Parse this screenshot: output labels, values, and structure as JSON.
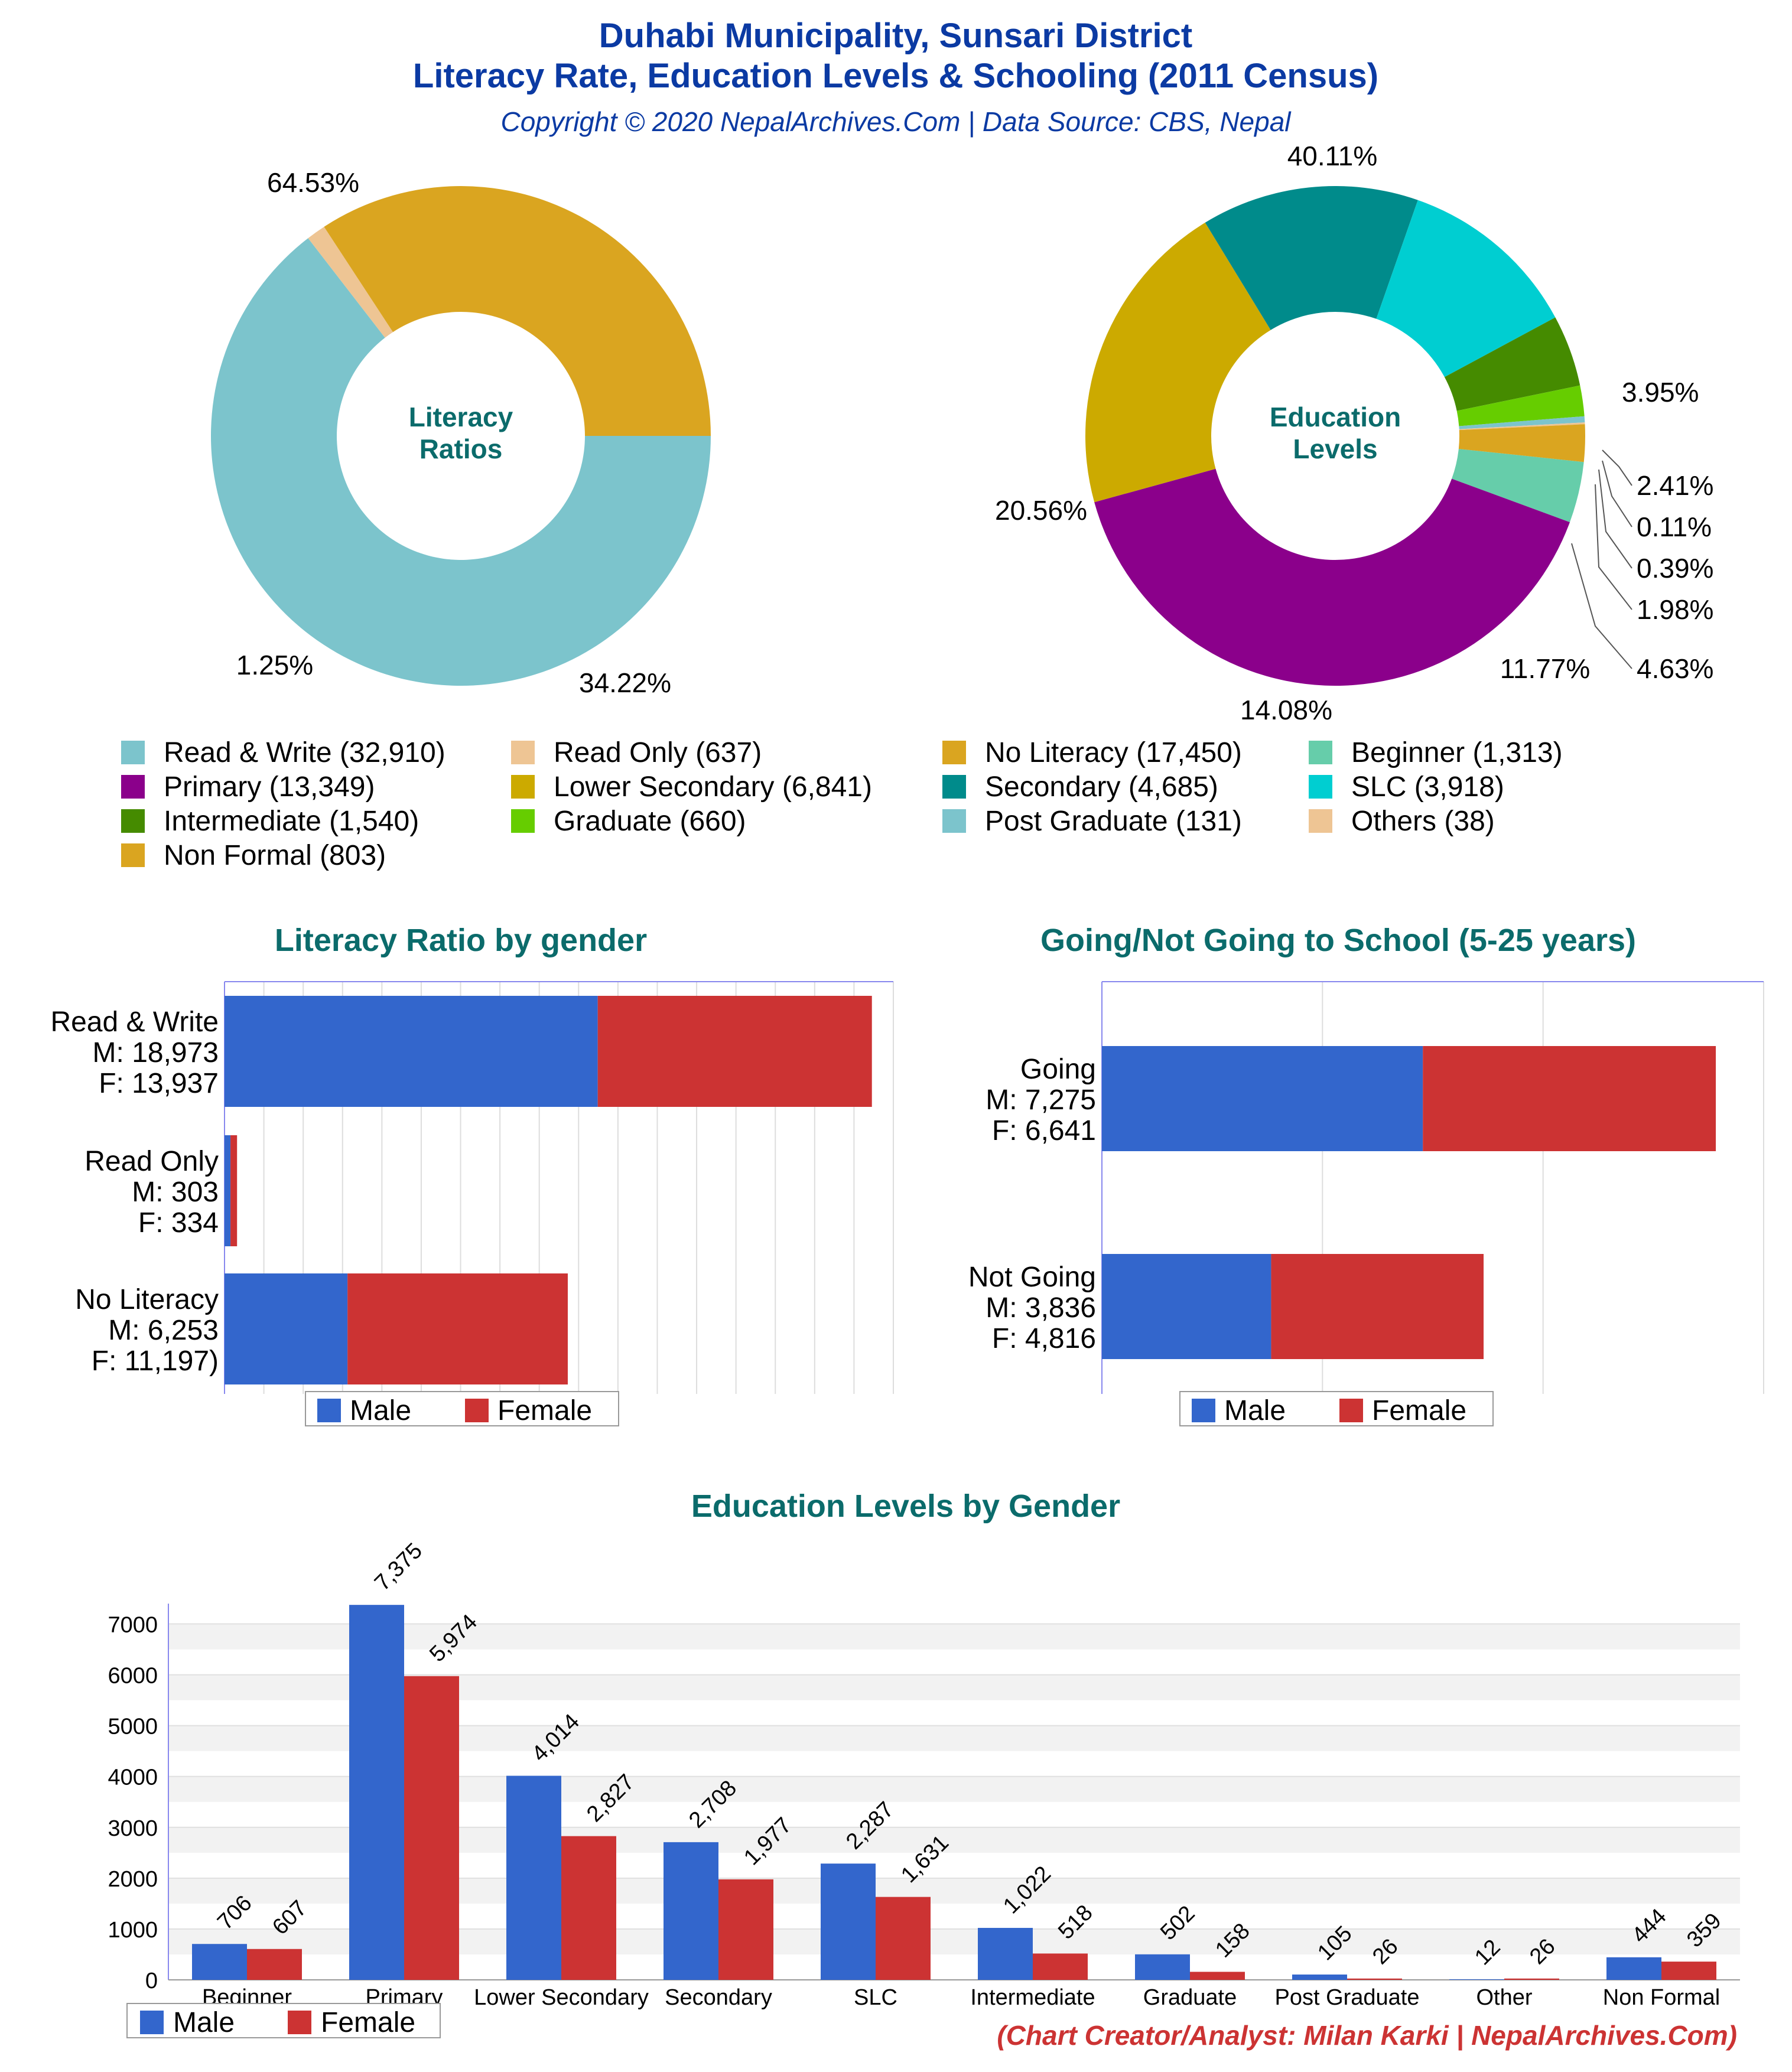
{
  "header": {
    "title_line1": "Duhabi Municipality, Sunsari District",
    "title_line2": "Literacy Rate, Education Levels & Schooling (2011 Census)",
    "subtitle": "Copyright © 2020 NepalArchives.Com | Data Source: CBS, Nepal"
  },
  "footer": {
    "credit": "(Chart Creator/Analyst: Milan Karki | NepalArchives.Com)"
  },
  "colors": {
    "title": "#0b3aa3",
    "section_title": "#0b6b6b",
    "male": "#3366cc",
    "female": "#cc3333",
    "credit": "#cc3333"
  },
  "chart_data": [
    {
      "id": "literacy_donut",
      "type": "pie",
      "center_label": [
        "Literacy",
        "Ratios"
      ],
      "slices": [
        {
          "label": "Read & Write (32,910)",
          "value": 32910,
          "percent_label": "64.53%",
          "color": "#7cc4cc"
        },
        {
          "label": "Read Only (637)",
          "value": 637,
          "percent_label": "1.25%",
          "color": "#eec594"
        },
        {
          "label": "No Literacy (17,450)",
          "value": 17450,
          "percent_label": "34.22%",
          "color": "#daa520"
        }
      ]
    },
    {
      "id": "education_donut",
      "type": "pie",
      "center_label": [
        "Education",
        "Levels"
      ],
      "slices": [
        {
          "label": "Beginner (1,313)",
          "value": 1313,
          "percent_label": "3.95%",
          "color": "#66cdaa"
        },
        {
          "label": "Primary (13,349)",
          "value": 13349,
          "percent_label": "40.11%",
          "color": "#8b008b"
        },
        {
          "label": "Lower Secondary (6,841)",
          "value": 6841,
          "percent_label": "20.56%",
          "color": "#ccaa00"
        },
        {
          "label": "Secondary (4,685)",
          "value": 4685,
          "percent_label": "14.08%",
          "color": "#008b8b"
        },
        {
          "label": "SLC (3,918)",
          "value": 3918,
          "percent_label": "11.77%",
          "color": "#00ced1"
        },
        {
          "label": "Intermediate (1,540)",
          "value": 1540,
          "percent_label": "4.63%",
          "color": "#458b00"
        },
        {
          "label": "Graduate (660)",
          "value": 660,
          "percent_label": "1.98%",
          "color": "#66cd00"
        },
        {
          "label": "Post Graduate (131)",
          "value": 131,
          "percent_label": "0.39%",
          "color": "#7cc4cc"
        },
        {
          "label": "Others (38)",
          "value": 38,
          "percent_label": "0.11%",
          "color": "#eec594"
        },
        {
          "label": "Non Formal (803)",
          "value": 803,
          "percent_label": "2.41%",
          "color": "#daa520"
        }
      ]
    },
    {
      "id": "literacy_by_gender",
      "type": "bar",
      "title": "Literacy Ratio by gender",
      "categories": [
        [
          "Read & Write",
          "M: 18,973",
          "F: 13,937"
        ],
        [
          "Read Only",
          "M: 303",
          "F: 334"
        ],
        [
          "No Literacy",
          "M: 6,253",
          "F: 11,197)"
        ]
      ],
      "series": [
        {
          "name": "Male",
          "values": [
            18973,
            303,
            6253
          ]
        },
        {
          "name": "Female",
          "values": [
            13937,
            334,
            11197
          ]
        }
      ],
      "xlim": [
        0,
        34000
      ],
      "stacked": true,
      "orientation": "horizontal"
    },
    {
      "id": "school_going",
      "type": "bar",
      "title": "Going/Not Going to School (5-25 years)",
      "categories": [
        [
          "Going",
          "M: 7,275",
          "F: 6,641"
        ],
        [
          "Not Going",
          "M: 3,836",
          "F: 4,816"
        ]
      ],
      "series": [
        {
          "name": "Male",
          "values": [
            7275,
            3836
          ]
        },
        {
          "name": "Female",
          "values": [
            6641,
            4816
          ]
        }
      ],
      "xlim": [
        0,
        15000
      ],
      "stacked": true,
      "orientation": "horizontal"
    },
    {
      "id": "education_by_gender",
      "type": "bar",
      "title": "Education Levels by Gender",
      "categories": [
        "Beginner",
        "Primary",
        "Lower Secondary",
        "Secondary",
        "SLC",
        "Intermediate",
        "Graduate",
        "Post Graduate",
        "Other",
        "Non Formal"
      ],
      "series": [
        {
          "name": "Male",
          "values": [
            706,
            7375,
            4014,
            2708,
            2287,
            1022,
            502,
            105,
            12,
            444
          ],
          "value_labels": [
            "706",
            "7,375",
            "4,014",
            "2,708",
            "2,287",
            "1,022",
            "502",
            "105",
            "12",
            "444"
          ]
        },
        {
          "name": "Female",
          "values": [
            607,
            5974,
            2827,
            1977,
            1631,
            518,
            158,
            26,
            26,
            359
          ],
          "value_labels": [
            "607",
            "5,974",
            "2,827",
            "1,977",
            "1,631",
            "518",
            "158",
            "26",
            "26",
            "359"
          ]
        }
      ],
      "ylim": [
        0,
        7400
      ],
      "yticks": [
        0,
        1000,
        2000,
        3000,
        4000,
        5000,
        6000,
        7000
      ]
    }
  ],
  "legends": {
    "gender": [
      "Male",
      "Female"
    ]
  }
}
